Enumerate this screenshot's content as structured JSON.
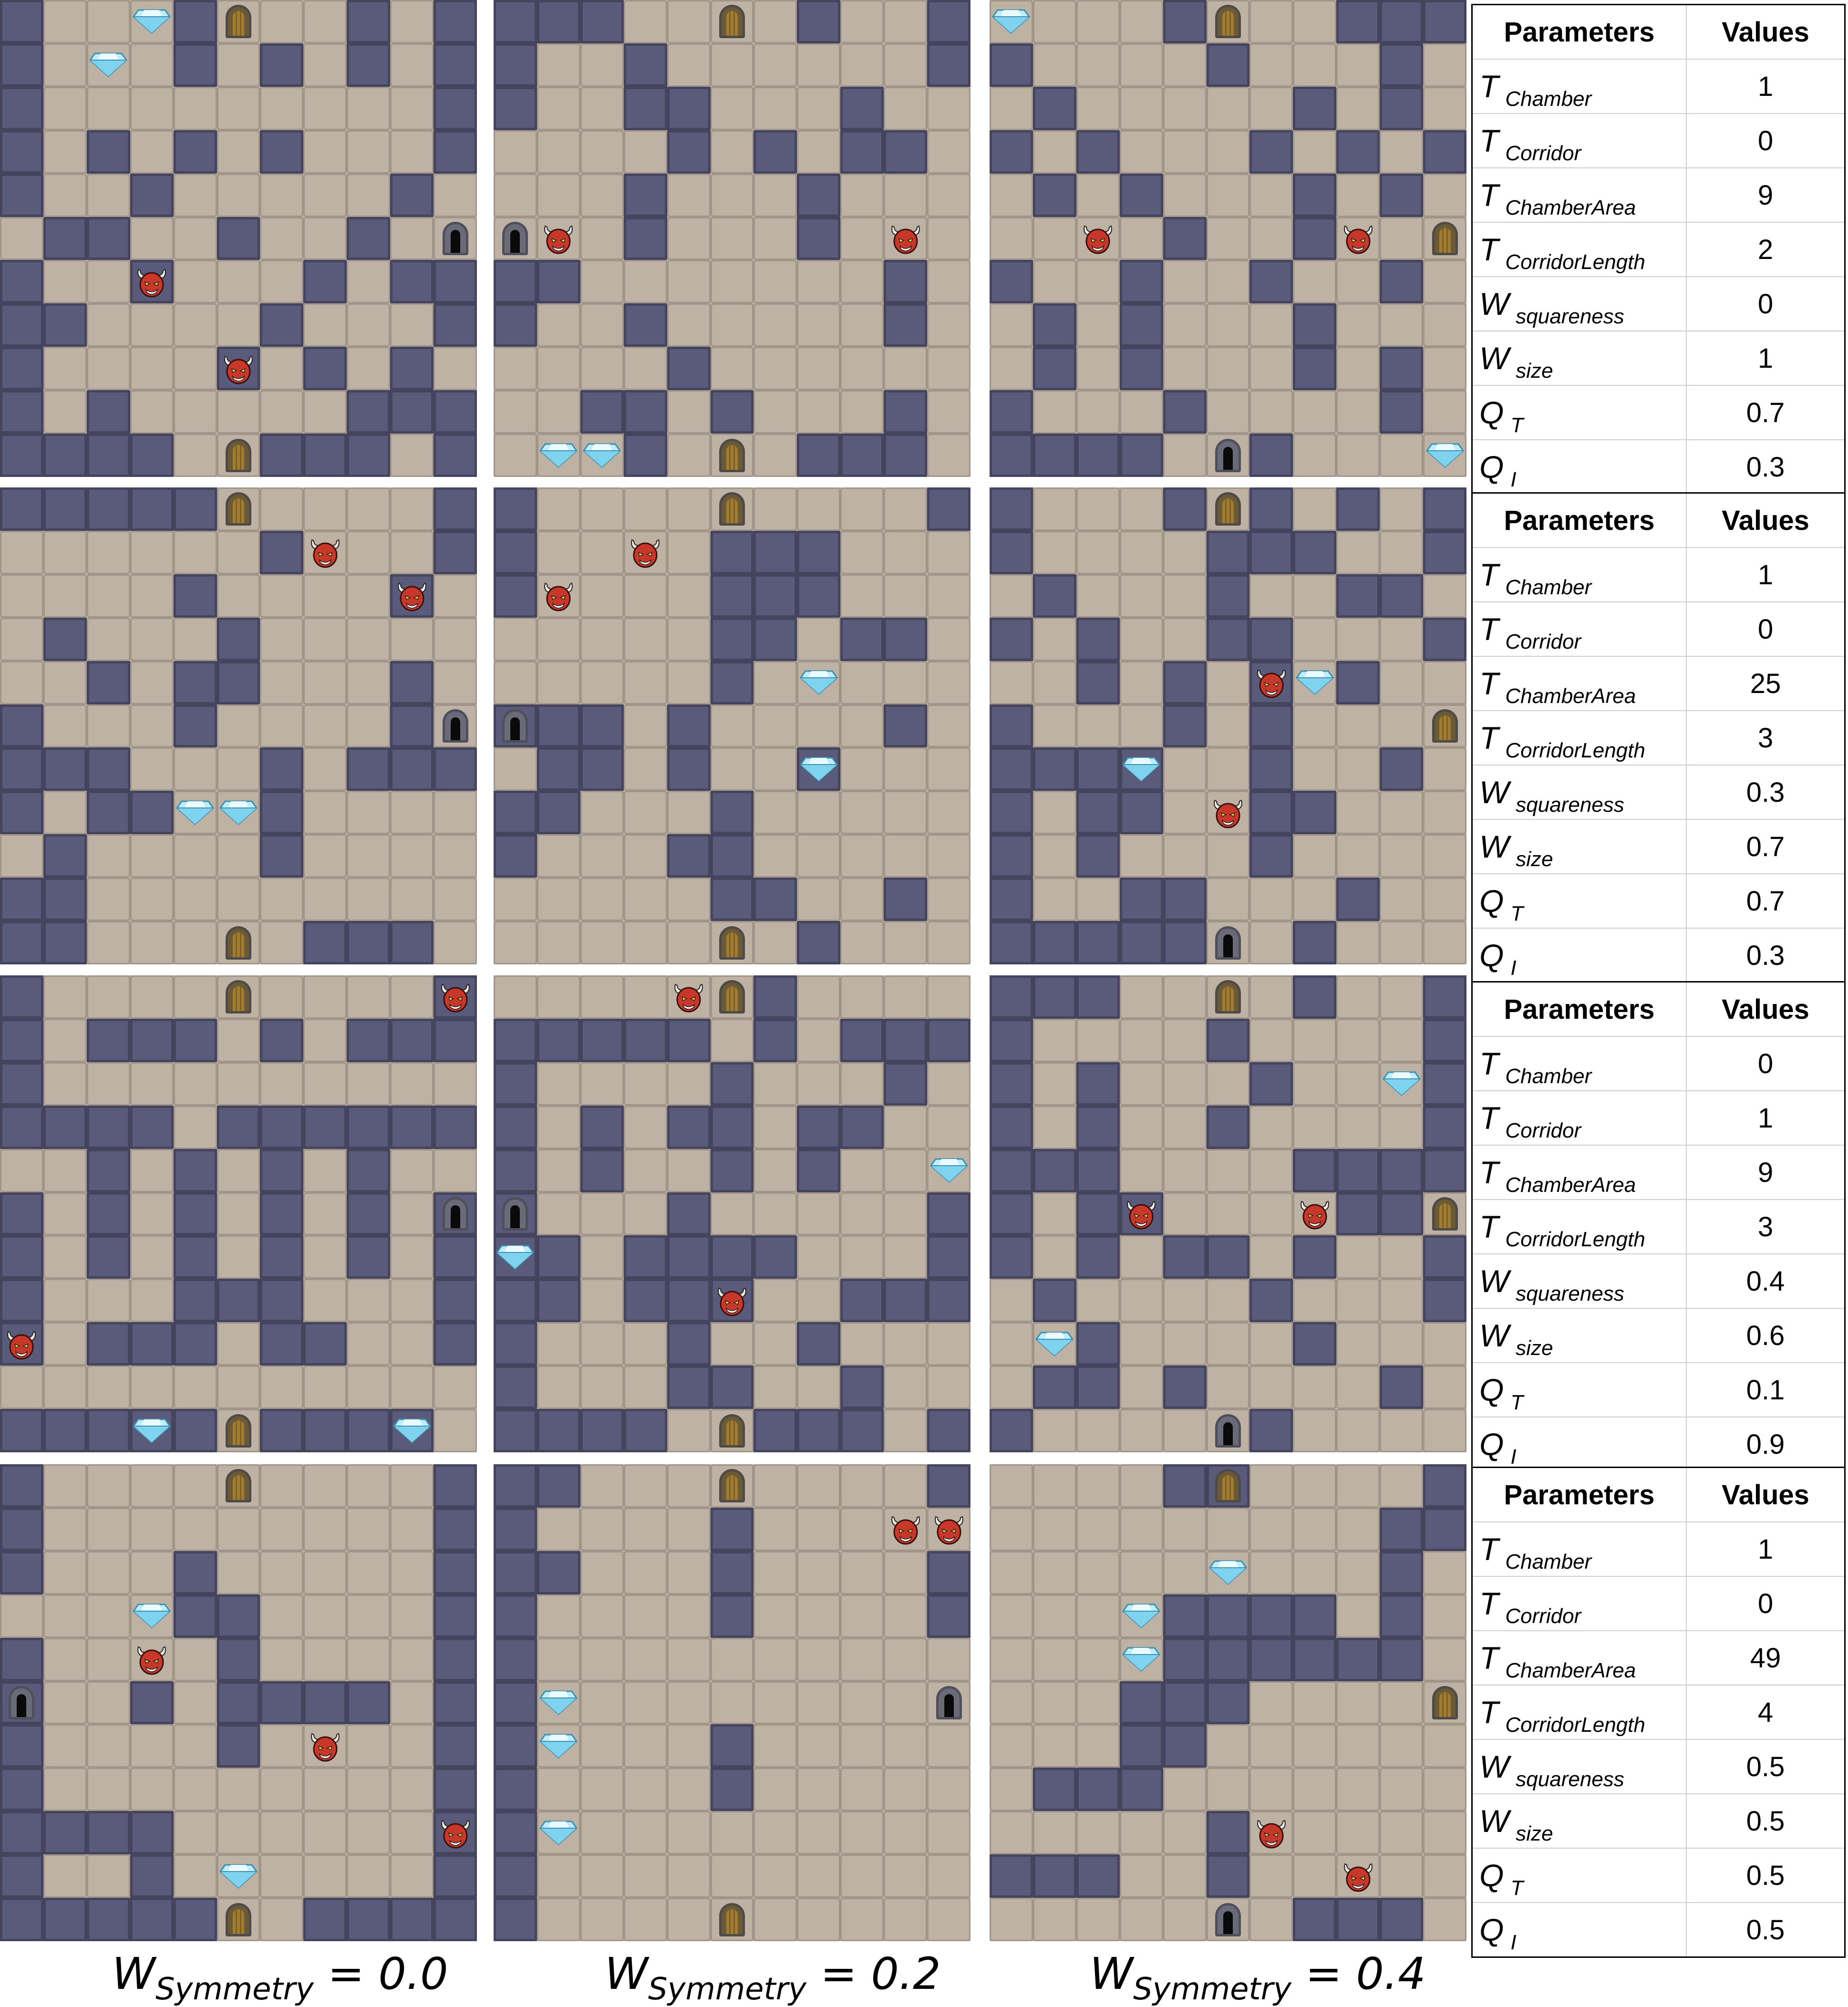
{
  "tables": [
    {
      "header": {
        "parameters": "Parameters",
        "values": "Values"
      },
      "rows": [
        {
          "sym": "T",
          "sub": "Chamber",
          "value": "1"
        },
        {
          "sym": "T",
          "sub": "Corridor",
          "value": "0"
        },
        {
          "sym": "T",
          "sub": "ChamberArea",
          "value": "9"
        },
        {
          "sym": "T",
          "sub": "CorridorLength",
          "value": "2"
        },
        {
          "sym": "W",
          "sub": "squareness",
          "value": "0"
        },
        {
          "sym": "W",
          "sub": "size",
          "value": "1"
        },
        {
          "sym": "Q",
          "sub": "T",
          "value": "0.7"
        },
        {
          "sym": "Q",
          "sub": "I",
          "value": "0.3"
        }
      ]
    },
    {
      "header": {
        "parameters": "Parameters",
        "values": "Values"
      },
      "rows": [
        {
          "sym": "T",
          "sub": "Chamber",
          "value": "1"
        },
        {
          "sym": "T",
          "sub": "Corridor",
          "value": "0"
        },
        {
          "sym": "T",
          "sub": "ChamberArea",
          "value": "25"
        },
        {
          "sym": "T",
          "sub": "CorridorLength",
          "value": "3"
        },
        {
          "sym": "W",
          "sub": "squareness",
          "value": "0.3"
        },
        {
          "sym": "W",
          "sub": "size",
          "value": "0.7"
        },
        {
          "sym": "Q",
          "sub": "T",
          "value": "0.7"
        },
        {
          "sym": "Q",
          "sub": "I",
          "value": "0.3"
        }
      ]
    },
    {
      "header": {
        "parameters": "Parameters",
        "values": "Values"
      },
      "rows": [
        {
          "sym": "T",
          "sub": "Chamber",
          "value": "0"
        },
        {
          "sym": "T",
          "sub": "Corridor",
          "value": "1"
        },
        {
          "sym": "T",
          "sub": "ChamberArea",
          "value": "9"
        },
        {
          "sym": "T",
          "sub": "CorridorLength",
          "value": "3"
        },
        {
          "sym": "W",
          "sub": "squareness",
          "value": "0.4"
        },
        {
          "sym": "W",
          "sub": "size",
          "value": "0.6"
        },
        {
          "sym": "Q",
          "sub": "T",
          "value": "0.1"
        },
        {
          "sym": "Q",
          "sub": "I",
          "value": "0.9"
        }
      ]
    },
    {
      "header": {
        "parameters": "Parameters",
        "values": "Values"
      },
      "rows": [
        {
          "sym": "T",
          "sub": "Chamber",
          "value": "1"
        },
        {
          "sym": "T",
          "sub": "Corridor",
          "value": "0"
        },
        {
          "sym": "T",
          "sub": "ChamberArea",
          "value": "49"
        },
        {
          "sym": "T",
          "sub": "CorridorLength",
          "value": "4"
        },
        {
          "sym": "W",
          "sub": "squareness",
          "value": "0.5"
        },
        {
          "sym": "W",
          "sub": "size",
          "value": "0.5"
        },
        {
          "sym": "Q",
          "sub": "T",
          "value": "0.5"
        },
        {
          "sym": "Q",
          "sub": "I",
          "value": "0.5"
        }
      ]
    }
  ],
  "column_labels": [
    {
      "sym": "W",
      "sub": "Symmetry",
      "rest": " = 0.0"
    },
    {
      "sym": "W",
      "sub": "Symmetry",
      "rest": " = 0.2"
    },
    {
      "sym": "W",
      "sub": "Symmetry",
      "rest": " = 0.4"
    }
  ],
  "maps": [
    [
      "WFFFWFFFWFW",
      "WFFFWFWFWFW",
      "WFFFFFFFFFW",
      "WFWFWFWFFFW",
      "WFFWFFFFFWF",
      "FWWFFWFFWFF",
      "WFFWFFFWFWW",
      "WWFFFFWFFFW",
      "WFFFFWFWFWF",
      "WFWFFFFFWWW",
      "WWWWFFWWWFW"
    ],
    [
      "WWWFFFFWFFW",
      "WFFWFFFFFFW",
      "WFFWWFFFWFF",
      "FFFFWFWFWWF",
      "FFFWFFFWFFF",
      "FFFWFFFWFFF",
      "WWFFFFFFFWF",
      "WFFWFFFFFWF",
      "FFFFWFFFFFF",
      "FFWWFWFFFWF",
      "FFFWFFFWWWF"
    ],
    [
      "FFFFWFFFWWW",
      "WFFFFWFFFWF",
      "FWFFFFFWFWF",
      "WFWFFFWFWFW",
      "FWFWFFFWFWF",
      "FFFFWFFWFFF",
      "WFFWFFWFFWF",
      "FWFWFFFWFFF",
      "FWFWFFFWFWF",
      "WFFFWFFFFWF",
      "WWWWFFWFFFF"
    ],
    [
      "WWWWWFFFFFW",
      "FFFFFFWFFFW",
      "FFFFWFFFFWF",
      "FWFFFWFFFFF",
      "FFWFWWFFFWF",
      "WFFFWFFFFWF",
      "WWWFFFWFWWW",
      "WFWWFFWFFFF",
      "FWFFFFWFFFF",
      "WWFFFFFFFFF",
      "WWFFFFFWWWF"
    ],
    [
      "WFFFFFFFFFW",
      "WFFFFWWWFFF",
      "WFFFFWWWFFF",
      "FFFFFWWFWWF",
      "FFFFFWFFFFF",
      "WWWFWFFFFWF",
      "FWWFWFFWFFF",
      "WWFFFWFFFFF",
      "WFFFWWFFFFF",
      "FFFFFWWFFWF",
      "FFFFFFFWFFF"
    ],
    [
      "WFFFWFWFWFW",
      "WFFFFWWWFFW",
      "FWFFFWFFWWF",
      "WFWFFWWFFFW",
      "FFWFWFWFWFF",
      "WFFFWFWFFFF",
      "WWWWFFWFFWF",
      "WFWWFFWWFFF",
      "WFWFFFWFFFF",
      "WFFWWFFFWFF",
      "WWWWWFFWFFF"
    ],
    [
      "WFFFFFFFFFW",
      "WFWWWFWFWWW",
      "WFFFFFFFFFF",
      "WWWWFWWWWWW",
      "FFWFWFWFWFF",
      "WFWFWFWFWFW",
      "WFWFWFWFWFW",
      "WFFFWWWFFFW",
      "WFWWWFWWFFW",
      "FFFFFFFFFFF",
      "WWWWWFWWWWF"
    ],
    [
      "FFFFFFWFFFF",
      "WWWWWFWFWWW",
      "WFFFFWFFFWF",
      "WFWFWWFWWFF",
      "WFWFFWFWFFF",
      "WFFFWFFFFFW",
      "WWFWWWWFFFW",
      "WWFWWWFFWWW",
      "WFFFWFFWFFF",
      "WFFFWWFFWFF",
      "WWWWFFWWWFW"
    ],
    [
      "WWWFFFFWFFW",
      "WFFFFWFFFFW",
      "WFWFFFWFFFW",
      "WFWFFWFFFFW",
      "WWWFFFFWWWW",
      "WFWWFFFFWWF",
      "WFWFWWFWFFW",
      "FWFFFFWFFFW",
      "FFWFFFFWFFF",
      "FWWFWFFFFWF",
      "WFFFFFWFFFF"
    ],
    [
      "WFFFFFFFFFW",
      "WFFFFFFFFFW",
      "WFFFWFFFFFW",
      "FFFFWWFFFFW",
      "WFFFFWFFFFW",
      "WFFWFWWWWFW",
      "WFFFFWFFFFW",
      "WFFFFFFFFFW",
      "WWWWFFFFFFW",
      "WFFWFFFFFFW",
      "WWWWWFFWWWW"
    ],
    [
      "WWFFFFFFFFW",
      "WFFFFWFFFFF",
      "WWFFFWFFFFW",
      "WFFFFWFFFFW",
      "WFFFFFFFFFF",
      "WFFFFFFFFFF",
      "WFFFFWFFFFF",
      "WFFFFWFFFFF",
      "WFFFFFFFFFF",
      "WFFFFFFFFFF",
      "WFFFFFFFFFF"
    ],
    [
      "FFFFWWFFFFW",
      "FFFFFFFFFWW",
      "FFFFFFFFFWF",
      "FFFFWWWWFWF",
      "FFFFWWWWWWF",
      "FFFWWWFFFFF",
      "FFFWWFFFFFF",
      "FWWWFFFFFFF",
      "FFFFFWFFFFF",
      "WWWFFWFFFFF",
      "FFFFFFFWWWF"
    ]
  ],
  "objects": [
    [
      {
        "t": "gem",
        "c": 3,
        "r": 0
      },
      {
        "t": "door",
        "c": 5,
        "r": 0
      },
      {
        "t": "gem",
        "c": 2,
        "r": 1
      },
      {
        "t": "exit",
        "c": 10,
        "r": 5
      },
      {
        "t": "monster",
        "c": 3,
        "r": 6
      },
      {
        "t": "monster",
        "c": 5,
        "r": 8
      },
      {
        "t": "door",
        "c": 5,
        "r": 10
      }
    ],
    [
      {
        "t": "door",
        "c": 5,
        "r": 0
      },
      {
        "t": "exit",
        "c": 0,
        "r": 5
      },
      {
        "t": "monster",
        "c": 1,
        "r": 5
      },
      {
        "t": "monster",
        "c": 9,
        "r": 5
      },
      {
        "t": "gem",
        "c": 1,
        "r": 10
      },
      {
        "t": "gem",
        "c": 2,
        "r": 10
      },
      {
        "t": "door",
        "c": 5,
        "r": 10
      }
    ],
    [
      {
        "t": "gem",
        "c": 0,
        "r": 0
      },
      {
        "t": "door",
        "c": 5,
        "r": 0
      },
      {
        "t": "monster",
        "c": 2,
        "r": 5
      },
      {
        "t": "monster",
        "c": 8,
        "r": 5
      },
      {
        "t": "door",
        "c": 10,
        "r": 5
      },
      {
        "t": "exit",
        "c": 5,
        "r": 10
      },
      {
        "t": "gem",
        "c": 10,
        "r": 10
      }
    ],
    [
      {
        "t": "door",
        "c": 5,
        "r": 0
      },
      {
        "t": "monster",
        "c": 7,
        "r": 1
      },
      {
        "t": "monster",
        "c": 9,
        "r": 2
      },
      {
        "t": "exit",
        "c": 10,
        "r": 5
      },
      {
        "t": "gem",
        "c": 4,
        "r": 7
      },
      {
        "t": "gem",
        "c": 5,
        "r": 7
      },
      {
        "t": "door",
        "c": 5,
        "r": 10
      }
    ],
    [
      {
        "t": "door",
        "c": 5,
        "r": 0
      },
      {
        "t": "monster",
        "c": 3,
        "r": 1
      },
      {
        "t": "monster",
        "c": 1,
        "r": 2
      },
      {
        "t": "gem",
        "c": 7,
        "r": 4
      },
      {
        "t": "exit",
        "c": 0,
        "r": 5
      },
      {
        "t": "gem",
        "c": 7,
        "r": 6
      },
      {
        "t": "door",
        "c": 5,
        "r": 10
      }
    ],
    [
      {
        "t": "door",
        "c": 5,
        "r": 0
      },
      {
        "t": "monster",
        "c": 6,
        "r": 4
      },
      {
        "t": "gem",
        "c": 7,
        "r": 4
      },
      {
        "t": "door",
        "c": 10,
        "r": 5
      },
      {
        "t": "gem",
        "c": 3,
        "r": 6
      },
      {
        "t": "monster",
        "c": 5,
        "r": 7
      },
      {
        "t": "exit",
        "c": 5,
        "r": 10
      }
    ],
    [
      {
        "t": "door",
        "c": 5,
        "r": 0
      },
      {
        "t": "monster",
        "c": 10,
        "r": 0
      },
      {
        "t": "exit",
        "c": 10,
        "r": 5
      },
      {
        "t": "monster",
        "c": 0,
        "r": 8
      },
      {
        "t": "gem",
        "c": 3,
        "r": 10
      },
      {
        "t": "door",
        "c": 5,
        "r": 10
      },
      {
        "t": "gem",
        "c": 9,
        "r": 10
      }
    ],
    [
      {
        "t": "monster",
        "c": 4,
        "r": 0
      },
      {
        "t": "door",
        "c": 5,
        "r": 0
      },
      {
        "t": "gem",
        "c": 10,
        "r": 4
      },
      {
        "t": "exit",
        "c": 0,
        "r": 5
      },
      {
        "t": "gem",
        "c": 0,
        "r": 6
      },
      {
        "t": "monster",
        "c": 5,
        "r": 7
      },
      {
        "t": "door",
        "c": 5,
        "r": 10
      }
    ],
    [
      {
        "t": "door",
        "c": 5,
        "r": 0
      },
      {
        "t": "gem",
        "c": 9,
        "r": 2
      },
      {
        "t": "monster",
        "c": 3,
        "r": 5
      },
      {
        "t": "monster",
        "c": 7,
        "r": 5
      },
      {
        "t": "door",
        "c": 10,
        "r": 5
      },
      {
        "t": "gem",
        "c": 1,
        "r": 8
      },
      {
        "t": "exit",
        "c": 5,
        "r": 10
      }
    ],
    [
      {
        "t": "door",
        "c": 5,
        "r": 0
      },
      {
        "t": "gem",
        "c": 3,
        "r": 3
      },
      {
        "t": "monster",
        "c": 3,
        "r": 4
      },
      {
        "t": "exit",
        "c": 0,
        "r": 5
      },
      {
        "t": "monster",
        "c": 7,
        "r": 6
      },
      {
        "t": "monster",
        "c": 10,
        "r": 8
      },
      {
        "t": "gem",
        "c": 5,
        "r": 9
      },
      {
        "t": "door",
        "c": 5,
        "r": 10
      }
    ],
    [
      {
        "t": "door",
        "c": 5,
        "r": 0
      },
      {
        "t": "monster",
        "c": 9,
        "r": 1
      },
      {
        "t": "monster",
        "c": 10,
        "r": 1
      },
      {
        "t": "gem",
        "c": 1,
        "r": 5
      },
      {
        "t": "exit",
        "c": 10,
        "r": 5
      },
      {
        "t": "gem",
        "c": 1,
        "r": 6
      },
      {
        "t": "gem",
        "c": 1,
        "r": 8
      },
      {
        "t": "door",
        "c": 5,
        "r": 10
      }
    ],
    [
      {
        "t": "door",
        "c": 5,
        "r": 0
      },
      {
        "t": "gem",
        "c": 5,
        "r": 2
      },
      {
        "t": "gem",
        "c": 3,
        "r": 3
      },
      {
        "t": "gem",
        "c": 3,
        "r": 4
      },
      {
        "t": "door",
        "c": 10,
        "r": 5
      },
      {
        "t": "monster",
        "c": 6,
        "r": 8
      },
      {
        "t": "monster",
        "c": 8,
        "r": 9
      },
      {
        "t": "exit",
        "c": 5,
        "r": 10
      }
    ]
  ]
}
